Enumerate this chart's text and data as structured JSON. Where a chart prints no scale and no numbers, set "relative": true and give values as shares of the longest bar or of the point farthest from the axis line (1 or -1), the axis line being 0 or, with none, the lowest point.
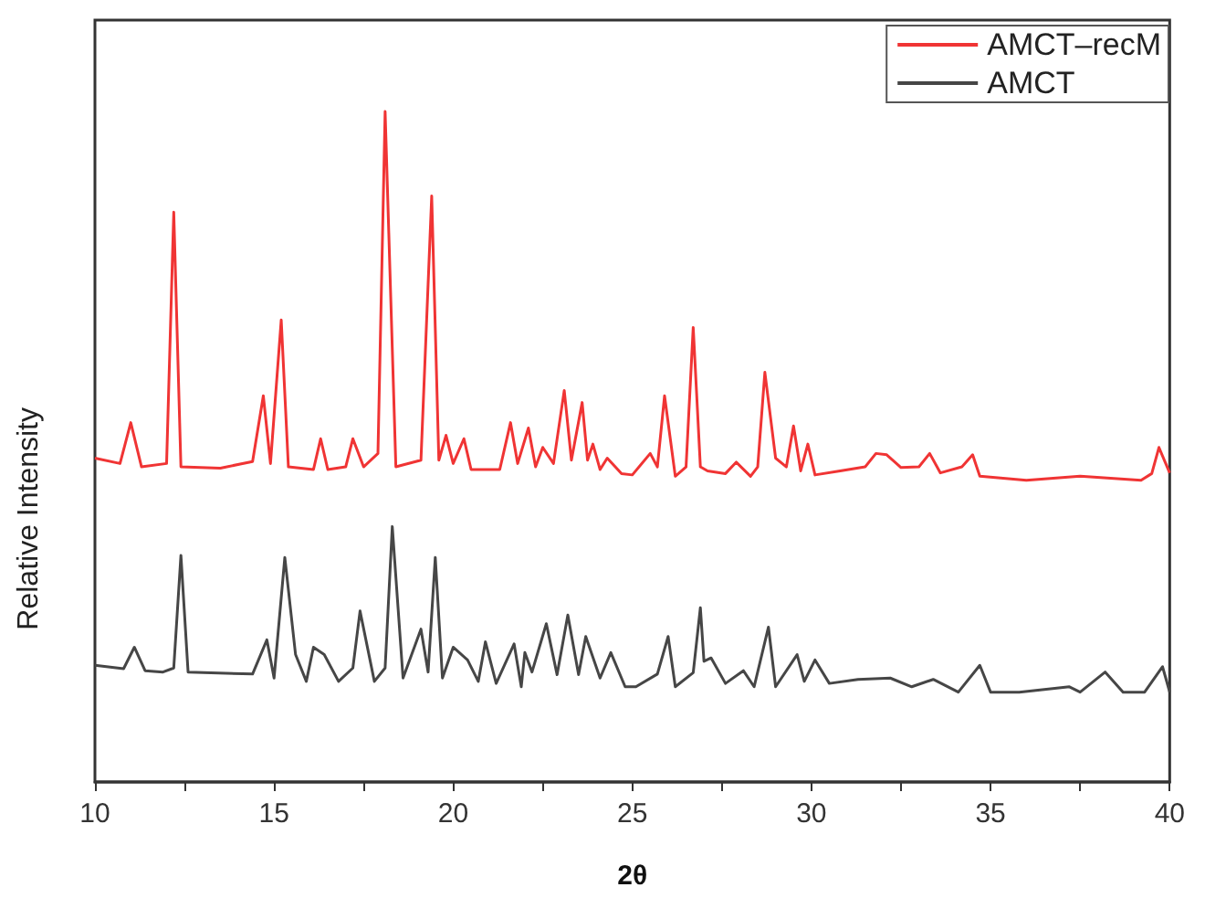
{
  "chart_data": {
    "type": "line",
    "xlabel": "2θ",
    "ylabel": "Relative Intensity",
    "relative": true,
    "xlim": [
      10,
      40
    ],
    "xticks": [
      10,
      {
        "value": 12.5,
        "label": null
      },
      15,
      {
        "value": 17.5,
        "label": null
      },
      20,
      {
        "value": 22.5,
        "label": null
      },
      25,
      {
        "value": 27.5,
        "label": null
      },
      30,
      {
        "value": 32.5,
        "label": null
      },
      35,
      {
        "value": 37.5,
        "label": null
      },
      40
    ],
    "legend": "top right",
    "grid": false,
    "marker": "none",
    "line_style": "solid",
    "series": [
      {
        "name": "AMCT–recM",
        "color": "#f03434",
        "x": [
          10.0,
          10.7,
          11.0,
          11.3,
          12.0,
          12.2,
          12.4,
          13.5,
          14.4,
          14.7,
          14.9,
          15.2,
          15.4,
          16.1,
          16.3,
          16.5,
          17.0,
          17.2,
          17.5,
          17.9,
          18.1,
          18.4,
          19.1,
          19.4,
          19.6,
          19.8,
          20.0,
          20.3,
          20.5,
          21.3,
          21.6,
          21.8,
          22.1,
          22.3,
          22.5,
          22.8,
          23.1,
          23.3,
          23.6,
          23.75,
          23.9,
          24.1,
          24.3,
          24.7,
          25.0,
          25.5,
          25.7,
          25.9,
          26.2,
          26.5,
          26.7,
          26.9,
          27.1,
          27.6,
          27.9,
          28.3,
          28.5,
          28.7,
          29.0,
          29.3,
          29.5,
          29.7,
          29.9,
          30.1,
          30.8,
          31.5,
          31.8,
          32.1,
          32.5,
          33.0,
          33.3,
          33.6,
          34.2,
          34.5,
          34.7,
          36.0,
          37.5,
          39.2,
          39.5,
          39.7,
          40.0
        ],
        "values": [
          0.483,
          0.475,
          0.536,
          0.47,
          0.475,
          0.85,
          0.47,
          0.468,
          0.478,
          0.576,
          0.475,
          0.689,
          0.47,
          0.466,
          0.512,
          0.466,
          0.47,
          0.512,
          0.47,
          0.49,
          1.0,
          0.47,
          0.48,
          0.874,
          0.48,
          0.517,
          0.475,
          0.512,
          0.466,
          0.466,
          0.536,
          0.475,
          0.528,
          0.47,
          0.499,
          0.475,
          0.584,
          0.48,
          0.566,
          0.48,
          0.504,
          0.466,
          0.483,
          0.46,
          0.458,
          0.49,
          0.47,
          0.576,
          0.456,
          0.47,
          0.678,
          0.47,
          0.464,
          0.46,
          0.477,
          0.456,
          0.47,
          0.611,
          0.483,
          0.47,
          0.531,
          0.464,
          0.504,
          0.458,
          0.464,
          0.47,
          0.49,
          0.488,
          0.469,
          0.47,
          0.49,
          0.461,
          0.47,
          0.488,
          0.456,
          0.45,
          0.456,
          0.45,
          0.46,
          0.499,
          0.461
        ]
      },
      {
        "name": "AMCT",
        "color": "#464646",
        "x": [
          10.0,
          10.8,
          11.1,
          11.4,
          11.9,
          12.2,
          12.4,
          12.6,
          14.4,
          14.8,
          15.0,
          15.3,
          15.6,
          15.9,
          16.1,
          16.4,
          16.8,
          17.2,
          17.4,
          17.8,
          18.1,
          18.3,
          18.6,
          19.1,
          19.3,
          19.5,
          19.7,
          20.0,
          20.4,
          20.7,
          20.9,
          21.2,
          21.7,
          21.9,
          22.0,
          22.2,
          22.6,
          22.9,
          23.2,
          23.5,
          23.7,
          24.1,
          24.4,
          24.8,
          25.1,
          25.7,
          26.0,
          26.2,
          26.7,
          26.9,
          27.0,
          27.2,
          27.6,
          28.1,
          28.4,
          28.8,
          29.0,
          29.6,
          29.8,
          30.1,
          30.5,
          31.3,
          32.2,
          32.8,
          33.4,
          34.1,
          34.7,
          35.0,
          35.8,
          37.2,
          37.5,
          38.2,
          38.7,
          39.3,
          39.8,
          40.0
        ],
        "values": [
          0.174,
          0.169,
          0.201,
          0.166,
          0.164,
          0.17,
          0.338,
          0.164,
          0.161,
          0.212,
          0.155,
          0.335,
          0.19,
          0.15,
          0.201,
          0.19,
          0.15,
          0.17,
          0.255,
          0.15,
          0.17,
          0.381,
          0.155,
          0.228,
          0.164,
          0.335,
          0.155,
          0.201,
          0.182,
          0.15,
          0.209,
          0.147,
          0.206,
          0.142,
          0.193,
          0.164,
          0.236,
          0.16,
          0.249,
          0.16,
          0.217,
          0.155,
          0.193,
          0.142,
          0.142,
          0.161,
          0.217,
          0.142,
          0.163,
          0.26,
          0.18,
          0.185,
          0.147,
          0.166,
          0.142,
          0.231,
          0.142,
          0.19,
          0.15,
          0.182,
          0.147,
          0.153,
          0.155,
          0.142,
          0.153,
          0.134,
          0.174,
          0.134,
          0.134,
          0.142,
          0.134,
          0.164,
          0.134,
          0.134,
          0.172,
          0.134
        ]
      }
    ]
  }
}
